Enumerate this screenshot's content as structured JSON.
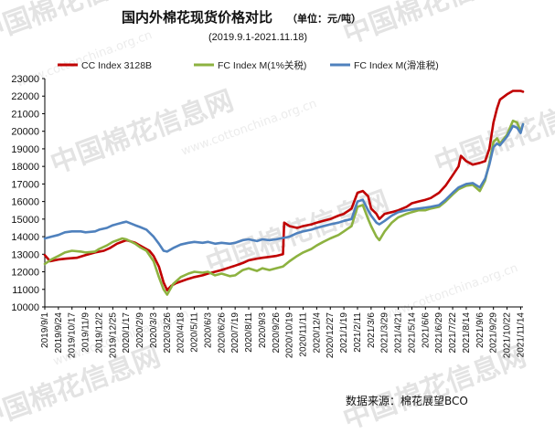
{
  "watermark": {
    "text": "中国棉花信息网",
    "url": "www.cottonchina.org.cn"
  },
  "chart_data": {
    "type": "line",
    "title": "国内外棉花现货价格对比",
    "unit_label": "（单位：元/吨）",
    "subtitle": "(2019.9.1-2021.11.18)",
    "source": "数据来源：棉花展望BCO",
    "ylim": [
      10000,
      23000
    ],
    "yticks": [
      10000,
      11000,
      12000,
      13000,
      14000,
      15000,
      16000,
      17000,
      18000,
      19000,
      20000,
      21000,
      22000,
      23000
    ],
    "xlim": [
      "2019-09-01",
      "2021-11-18"
    ],
    "xticks": [
      "2019/9/1",
      "2019/9/24",
      "2019/10/17",
      "2019/11/9",
      "2019/12/2",
      "2019/12/25",
      "2020/1/17",
      "2020/2/9",
      "2020/3/3",
      "2020/3/26",
      "2020/4/18",
      "2020/5/11",
      "2020/6/3",
      "2020/6/26",
      "2020/7/19",
      "2020/8/11",
      "2020/9/3",
      "2020/9/26",
      "2020/10/19",
      "2020/11/11",
      "2020/12/4",
      "2020/12/27",
      "2021/1/19",
      "2021/2/11",
      "2021/3/6",
      "2021/3/29",
      "2021/4/21",
      "2021/5/14",
      "2021/6/6",
      "2021/6/29",
      "2021/7/22",
      "2021/8/14",
      "2021/9/6",
      "2021/9/29",
      "2021/10/22",
      "2021/11/14"
    ],
    "grid": false,
    "legend_position": "top",
    "series": [
      {
        "name": "CC Index 3128B",
        "color": "#c00000",
        "points": [
          [
            "2019-09-01",
            12950
          ],
          [
            "2019-09-10",
            12600
          ],
          [
            "2019-09-24",
            12700
          ],
          [
            "2019-10-08",
            12750
          ],
          [
            "2019-10-25",
            12800
          ],
          [
            "2019-11-09",
            12950
          ],
          [
            "2019-11-25",
            13100
          ],
          [
            "2019-12-10",
            13200
          ],
          [
            "2019-12-20",
            13350
          ],
          [
            "2020-01-01",
            13600
          ],
          [
            "2020-01-17",
            13800
          ],
          [
            "2020-02-01",
            13650
          ],
          [
            "2020-02-09",
            13500
          ],
          [
            "2020-02-25",
            13200
          ],
          [
            "2020-03-03",
            12900
          ],
          [
            "2020-03-12",
            12300
          ],
          [
            "2020-03-20",
            11400
          ],
          [
            "2020-03-26",
            10950
          ],
          [
            "2020-04-02",
            11200
          ],
          [
            "2020-04-10",
            11350
          ],
          [
            "2020-04-18",
            11450
          ],
          [
            "2020-05-01",
            11600
          ],
          [
            "2020-05-11",
            11700
          ],
          [
            "2020-05-25",
            11800
          ],
          [
            "2020-06-03",
            11900
          ],
          [
            "2020-06-15",
            12000
          ],
          [
            "2020-06-26",
            12100
          ],
          [
            "2020-07-10",
            12250
          ],
          [
            "2020-07-19",
            12350
          ],
          [
            "2020-08-01",
            12500
          ],
          [
            "2020-08-11",
            12650
          ],
          [
            "2020-08-25",
            12750
          ],
          [
            "2020-09-03",
            12800
          ],
          [
            "2020-09-15",
            12850
          ],
          [
            "2020-09-26",
            12900
          ],
          [
            "2020-10-08",
            13000
          ],
          [
            "2020-10-10",
            14800
          ],
          [
            "2020-10-19",
            14600
          ],
          [
            "2020-11-01",
            14500
          ],
          [
            "2020-11-11",
            14600
          ],
          [
            "2020-11-25",
            14700
          ],
          [
            "2020-12-04",
            14800
          ],
          [
            "2020-12-15",
            14900
          ],
          [
            "2020-12-27",
            15000
          ],
          [
            "2021-01-10",
            15200
          ],
          [
            "2021-01-19",
            15300
          ],
          [
            "2021-02-01",
            15600
          ],
          [
            "2021-02-11",
            16500
          ],
          [
            "2021-02-20",
            16600
          ],
          [
            "2021-03-01",
            16300
          ],
          [
            "2021-03-06",
            15600
          ],
          [
            "2021-03-15",
            15300
          ],
          [
            "2021-03-20",
            15000
          ],
          [
            "2021-03-29",
            15300
          ],
          [
            "2021-04-10",
            15400
          ],
          [
            "2021-04-21",
            15500
          ],
          [
            "2021-05-05",
            15700
          ],
          [
            "2021-05-14",
            15900
          ],
          [
            "2021-05-25",
            16000
          ],
          [
            "2021-06-06",
            16100
          ],
          [
            "2021-06-15",
            16200
          ],
          [
            "2021-06-29",
            16500
          ],
          [
            "2021-07-10",
            16900
          ],
          [
            "2021-07-22",
            17500
          ],
          [
            "2021-08-01",
            18000
          ],
          [
            "2021-08-05",
            18600
          ],
          [
            "2021-08-14",
            18300
          ],
          [
            "2021-08-25",
            18100
          ],
          [
            "2021-09-06",
            18200
          ],
          [
            "2021-09-15",
            18300
          ],
          [
            "2021-09-22",
            19000
          ],
          [
            "2021-09-29",
            20500
          ],
          [
            "2021-10-05",
            21300
          ],
          [
            "2021-10-10",
            21800
          ],
          [
            "2021-10-22",
            22100
          ],
          [
            "2021-11-01",
            22300
          ],
          [
            "2021-11-14",
            22300
          ],
          [
            "2021-11-18",
            22250
          ]
        ]
      },
      {
        "name": "FC Index M(1%关税)",
        "color": "#8db240",
        "points": [
          [
            "2019-09-01",
            12450
          ],
          [
            "2019-09-12",
            12700
          ],
          [
            "2019-09-24",
            12900
          ],
          [
            "2019-10-05",
            13100
          ],
          [
            "2019-10-17",
            13200
          ],
          [
            "2019-11-01",
            13150
          ],
          [
            "2019-11-09",
            13100
          ],
          [
            "2019-11-25",
            13150
          ],
          [
            "2019-12-02",
            13300
          ],
          [
            "2019-12-15",
            13500
          ],
          [
            "2019-12-25",
            13700
          ],
          [
            "2020-01-10",
            13900
          ],
          [
            "2020-01-17",
            13850
          ],
          [
            "2020-02-01",
            13600
          ],
          [
            "2020-02-09",
            13400
          ],
          [
            "2020-02-20",
            13200
          ],
          [
            "2020-03-03",
            12600
          ],
          [
            "2020-03-12",
            11700
          ],
          [
            "2020-03-20",
            11000
          ],
          [
            "2020-03-26",
            10700
          ],
          [
            "2020-04-05",
            11300
          ],
          [
            "2020-04-18",
            11700
          ],
          [
            "2020-05-01",
            11900
          ],
          [
            "2020-05-11",
            12000
          ],
          [
            "2020-05-25",
            11950
          ],
          [
            "2020-06-03",
            12000
          ],
          [
            "2020-06-15",
            11800
          ],
          [
            "2020-06-26",
            11900
          ],
          [
            "2020-07-10",
            11750
          ],
          [
            "2020-07-19",
            11800
          ],
          [
            "2020-08-01",
            12100
          ],
          [
            "2020-08-11",
            12200
          ],
          [
            "2020-08-25",
            12050
          ],
          [
            "2020-09-03",
            12200
          ],
          [
            "2020-09-15",
            12100
          ],
          [
            "2020-09-26",
            12200
          ],
          [
            "2020-10-08",
            12300
          ],
          [
            "2020-10-19",
            12600
          ],
          [
            "2020-11-01",
            12900
          ],
          [
            "2020-11-11",
            13100
          ],
          [
            "2020-11-25",
            13300
          ],
          [
            "2020-12-04",
            13500
          ],
          [
            "2020-12-15",
            13700
          ],
          [
            "2020-12-27",
            13900
          ],
          [
            "2021-01-10",
            14100
          ],
          [
            "2021-01-19",
            14300
          ],
          [
            "2021-02-01",
            14600
          ],
          [
            "2021-02-11",
            15700
          ],
          [
            "2021-02-20",
            15800
          ],
          [
            "2021-03-01",
            15000
          ],
          [
            "2021-03-06",
            14600
          ],
          [
            "2021-03-15",
            14000
          ],
          [
            "2021-03-20",
            13800
          ],
          [
            "2021-03-29",
            14300
          ],
          [
            "2021-04-10",
            14800
          ],
          [
            "2021-04-21",
            15100
          ],
          [
            "2021-05-05",
            15300
          ],
          [
            "2021-05-14",
            15400
          ],
          [
            "2021-05-25",
            15500
          ],
          [
            "2021-06-06",
            15500
          ],
          [
            "2021-06-15",
            15600
          ],
          [
            "2021-06-29",
            15700
          ],
          [
            "2021-07-10",
            16000
          ],
          [
            "2021-07-22",
            16400
          ],
          [
            "2021-08-01",
            16700
          ],
          [
            "2021-08-14",
            16900
          ],
          [
            "2021-08-25",
            16950
          ],
          [
            "2021-09-06",
            16600
          ],
          [
            "2021-09-15",
            17200
          ],
          [
            "2021-09-22",
            18200
          ],
          [
            "2021-09-29",
            19400
          ],
          [
            "2021-10-05",
            19600
          ],
          [
            "2021-10-10",
            19300
          ],
          [
            "2021-10-22",
            19800
          ],
          [
            "2021-11-01",
            20600
          ],
          [
            "2021-11-08",
            20500
          ],
          [
            "2021-11-14",
            20000
          ],
          [
            "2021-11-18",
            20400
          ]
        ]
      },
      {
        "name": "FC Index M(滑准税)",
        "color": "#4f81bd",
        "points": [
          [
            "2019-09-01",
            13900
          ],
          [
            "2019-09-12",
            14000
          ],
          [
            "2019-09-24",
            14100
          ],
          [
            "2019-10-05",
            14250
          ],
          [
            "2019-10-17",
            14300
          ],
          [
            "2019-11-01",
            14300
          ],
          [
            "2019-11-09",
            14250
          ],
          [
            "2019-11-25",
            14300
          ],
          [
            "2019-12-02",
            14400
          ],
          [
            "2019-12-15",
            14500
          ],
          [
            "2019-12-25",
            14650
          ],
          [
            "2020-01-10",
            14800
          ],
          [
            "2020-01-17",
            14850
          ],
          [
            "2020-02-01",
            14650
          ],
          [
            "2020-02-09",
            14550
          ],
          [
            "2020-02-20",
            14400
          ],
          [
            "2020-03-03",
            14000
          ],
          [
            "2020-03-12",
            13600
          ],
          [
            "2020-03-20",
            13200
          ],
          [
            "2020-03-26",
            13150
          ],
          [
            "2020-04-05",
            13350
          ],
          [
            "2020-04-18",
            13550
          ],
          [
            "2020-05-01",
            13650
          ],
          [
            "2020-05-11",
            13700
          ],
          [
            "2020-05-25",
            13650
          ],
          [
            "2020-06-03",
            13700
          ],
          [
            "2020-06-15",
            13600
          ],
          [
            "2020-06-26",
            13650
          ],
          [
            "2020-07-10",
            13600
          ],
          [
            "2020-07-19",
            13650
          ],
          [
            "2020-08-01",
            13800
          ],
          [
            "2020-08-11",
            13850
          ],
          [
            "2020-08-25",
            13750
          ],
          [
            "2020-09-03",
            13850
          ],
          [
            "2020-09-15",
            13800
          ],
          [
            "2020-09-26",
            13850
          ],
          [
            "2020-10-19",
            14000
          ],
          [
            "2020-11-01",
            14200
          ],
          [
            "2020-11-11",
            14300
          ],
          [
            "2020-11-25",
            14400
          ],
          [
            "2020-12-04",
            14500
          ],
          [
            "2020-12-15",
            14600
          ],
          [
            "2020-12-27",
            14700
          ],
          [
            "2021-01-10",
            14800
          ],
          [
            "2021-01-19",
            14900
          ],
          [
            "2021-02-01",
            15000
          ],
          [
            "2021-02-11",
            16000
          ],
          [
            "2021-02-20",
            16100
          ],
          [
            "2021-03-01",
            15500
          ],
          [
            "2021-03-06",
            15200
          ],
          [
            "2021-03-15",
            14800
          ],
          [
            "2021-03-20",
            14700
          ],
          [
            "2021-03-29",
            14900
          ],
          [
            "2021-04-10",
            15200
          ],
          [
            "2021-04-21",
            15400
          ],
          [
            "2021-05-05",
            15500
          ],
          [
            "2021-05-14",
            15550
          ],
          [
            "2021-05-25",
            15600
          ],
          [
            "2021-06-06",
            15650
          ],
          [
            "2021-06-15",
            15700
          ],
          [
            "2021-06-29",
            15800
          ],
          [
            "2021-07-10",
            16100
          ],
          [
            "2021-07-22",
            16500
          ],
          [
            "2021-08-01",
            16800
          ],
          [
            "2021-08-14",
            17000
          ],
          [
            "2021-08-25",
            17050
          ],
          [
            "2021-09-06",
            16800
          ],
          [
            "2021-09-15",
            17300
          ],
          [
            "2021-09-22",
            18100
          ],
          [
            "2021-09-29",
            19100
          ],
          [
            "2021-10-05",
            19300
          ],
          [
            "2021-10-10",
            19200
          ],
          [
            "2021-10-22",
            19700
          ],
          [
            "2021-11-01",
            20300
          ],
          [
            "2021-11-08",
            20200
          ],
          [
            "2021-11-14",
            19900
          ],
          [
            "2021-11-18",
            20400
          ]
        ]
      }
    ]
  }
}
